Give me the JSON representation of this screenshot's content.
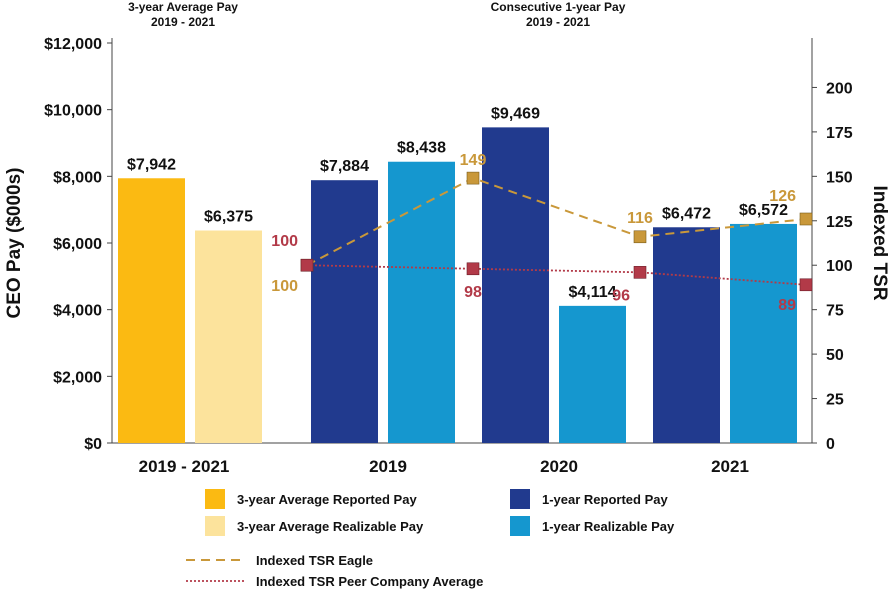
{
  "chart_data": {
    "type": "bar",
    "section_headers": [
      {
        "line1": "3-year Average Pay",
        "line2": "2019 - 2021"
      },
      {
        "line1": "Consecutive 1-year Pay",
        "line2": "2019 - 2021"
      }
    ],
    "ylabel": "CEO Pay ($000s)",
    "y2label": "Indexed TSR",
    "ylim": [
      0,
      12000
    ],
    "y2lim": [
      0,
      225
    ],
    "yticks": [
      "$0",
      "$2,000",
      "$4,000",
      "$6,000",
      "$8,000",
      "$10,000",
      "$12,000"
    ],
    "y2ticks": [
      "0",
      "25",
      "50",
      "75",
      "100",
      "125",
      "150",
      "175",
      "200"
    ],
    "categories": [
      "2019 - 2021",
      "2019",
      "2020",
      "2021"
    ],
    "bar_series": [
      {
        "name": "3-year Average Reported Pay",
        "color": "#FBBA12",
        "category": "2019 - 2021",
        "value": 7942,
        "label": "$7,942"
      },
      {
        "name": "3-year Average Realizable Pay",
        "color": "#FCE39C",
        "category": "2019 - 2021",
        "value": 6375,
        "label": "$6,375"
      },
      {
        "name": "1-year Reported Pay",
        "color": "#213A8E",
        "category": "2019",
        "value": 7884,
        "label": "$7,884"
      },
      {
        "name": "1-year Realizable Pay",
        "color": "#1597CF",
        "category": "2019",
        "value": 8438,
        "label": "$8,438"
      },
      {
        "name": "1-year Reported Pay",
        "color": "#213A8E",
        "category": "2020",
        "value": 9469,
        "label": "$9,469"
      },
      {
        "name": "1-year Realizable Pay",
        "color": "#1597CF",
        "category": "2020",
        "value": 4114,
        "label": "$4,114"
      },
      {
        "name": "1-year Reported Pay",
        "color": "#213A8E",
        "category": "2021",
        "value": 6472,
        "label": "$6,472"
      },
      {
        "name": "1-year Realizable Pay",
        "color": "#1597CF",
        "category": "2021",
        "value": 6572,
        "label": "$6,572"
      }
    ],
    "line_series": [
      {
        "name": "Indexed TSR Eagle",
        "color": "#C9983A",
        "values": [
          100,
          149,
          116,
          126
        ],
        "labels": [
          "100",
          "149",
          "116",
          "126"
        ]
      },
      {
        "name": "Indexed TSR Peer Company Average",
        "color": "#B23A48",
        "values": [
          100,
          98,
          96,
          89
        ],
        "labels": [
          "100",
          "98",
          "96",
          "89"
        ]
      }
    ],
    "legend": [
      {
        "label": "3-year Average Reported Pay",
        "color": "#FBBA12",
        "kind": "box"
      },
      {
        "label": "1-year Reported Pay",
        "color": "#213A8E",
        "kind": "box"
      },
      {
        "label": "3-year Average Realizable Pay",
        "color": "#FCE39C",
        "kind": "box"
      },
      {
        "label": "1-year Realizable Pay",
        "color": "#1597CF",
        "kind": "box"
      },
      {
        "label": "Indexed TSR Eagle",
        "color": "#C9983A",
        "kind": "dash"
      },
      {
        "label": "Indexed TSR Peer Company Average",
        "color": "#B23A48",
        "kind": "dot"
      }
    ],
    "legend_placement": "bottom",
    "grid": false
  }
}
